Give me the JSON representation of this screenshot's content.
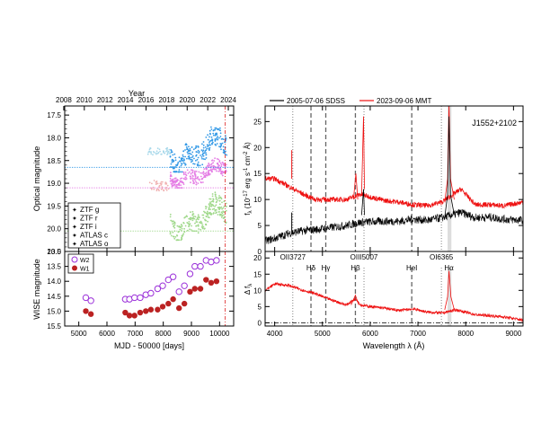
{
  "chart_data": [
    {
      "type": "scatter",
      "panel": "left-top",
      "top_axis_title": "Year",
      "top_ticks": [
        "2008",
        "2010",
        "2012",
        "2014",
        "2016",
        "2018",
        "2020",
        "2022",
        "2024"
      ],
      "ylabel": "Optical magnitude",
      "ylim": [
        20.5,
        17.3
      ],
      "yticks": [
        "17.5",
        "18.0",
        "18.5",
        "19.0",
        "19.5",
        "20.0",
        "20.5"
      ],
      "xlim": [
        4500,
        10500
      ],
      "legend": [
        "ZTF g",
        "ZTF r",
        "ZTF i",
        "ATLAS c",
        "ATLAS o"
      ],
      "series": [
        {
          "name": "ZTF g",
          "color": "#9fd88a",
          "x_range": [
            8250,
            10250
          ],
          "mag_range": [
            19.2,
            20.25
          ]
        },
        {
          "name": "ZTF r",
          "color": "#e57ee5",
          "x_range": [
            8250,
            10250
          ],
          "mag_range": [
            18.45,
            19.1
          ]
        },
        {
          "name": "ZTF i",
          "color": "#3399e6",
          "x_range": [
            8250,
            10250
          ],
          "mag_range": [
            17.7,
            18.75
          ]
        },
        {
          "name": "ATLAS c",
          "color": "#f0b0b0",
          "x_range": [
            7450,
            8250
          ],
          "mag_range": [
            18.9,
            19.2
          ]
        },
        {
          "name": "ATLAS o",
          "color": "#a8d8ea",
          "x_range": [
            7450,
            8250
          ],
          "mag_range": [
            18.2,
            18.4
          ]
        }
      ],
      "reference_lines": [
        {
          "mag": 18.65,
          "color": "#3399e6"
        },
        {
          "mag": 19.1,
          "color": "#e57ee5"
        },
        {
          "mag": 20.05,
          "color": "#9fd88a"
        }
      ],
      "vline_x": 10194
    },
    {
      "type": "scatter",
      "panel": "left-bottom",
      "ylabel": "WISE magnitude",
      "xlabel": "MJD - 50000 [days]",
      "xticks": [
        "5000",
        "6000",
        "7000",
        "8000",
        "9000",
        "10000"
      ],
      "xlim": [
        4500,
        10500
      ],
      "ylim": [
        15.5,
        13.0
      ],
      "yticks": [
        "13.0",
        "13.5",
        "14.0",
        "14.5",
        "15.0",
        "15.5"
      ],
      "legend": [
        "W2",
        "W1"
      ],
      "series": [
        {
          "name": "W2",
          "color": "#9b30d9",
          "x": [
            5250,
            5430,
            6650,
            6800,
            6980,
            7180,
            7380,
            7560,
            7800,
            7980,
            8180,
            8350,
            8560,
            8750,
            8950,
            9120,
            9320,
            9520,
            9700,
            9890
          ],
          "y": [
            14.55,
            14.65,
            14.6,
            14.6,
            14.55,
            14.55,
            14.45,
            14.4,
            14.25,
            14.15,
            13.95,
            13.85,
            14.35,
            14.15,
            13.75,
            13.5,
            13.5,
            13.3,
            13.35,
            13.3
          ]
        },
        {
          "name": "W1",
          "color": "#bb2222",
          "x": [
            5250,
            5430,
            6650,
            6800,
            6980,
            7180,
            7380,
            7560,
            7800,
            7980,
            8180,
            8350,
            8560,
            8750,
            8950,
            9120,
            9320,
            9520,
            9700,
            9890
          ],
          "y": [
            15.0,
            15.1,
            15.05,
            15.15,
            15.15,
            15.05,
            15.0,
            14.95,
            14.95,
            14.85,
            14.75,
            14.6,
            14.9,
            14.75,
            14.35,
            14.25,
            14.25,
            13.95,
            14.05,
            14.0
          ]
        }
      ],
      "vline_x": 10194
    },
    {
      "type": "line",
      "panel": "right-top",
      "ylabel_parts": [
        "f",
        "λ",
        " (10",
        "-17",
        " erg s",
        "-1",
        " cm",
        "-2",
        " Å",
        ")"
      ],
      "xlim": [
        3800,
        9200
      ],
      "ylim": [
        0,
        28
      ],
      "yticks": [
        "0",
        "5",
        "10",
        "15",
        "20",
        "25"
      ],
      "legend": [
        "2005-07-06 SDSS",
        "2023-09-06 MMT"
      ],
      "object_label": "J1552+2102",
      "series": [
        {
          "name": "2005-07-06 SDSS",
          "color": "#000000",
          "x": [
            3800,
            4000,
            4300,
            4600,
            4850,
            5100,
            5500,
            5800,
            6000,
            6300,
            6600,
            6900,
            7200,
            7500,
            7700,
            7900,
            8200,
            8500,
            8800,
            9200
          ],
          "y": [
            2.0,
            2.5,
            3.5,
            4.0,
            4.2,
            4.5,
            5.0,
            5.6,
            5.7,
            5.8,
            5.8,
            6.2,
            6.0,
            6.5,
            25,
            7.5,
            6.5,
            6.6,
            6.2,
            6.0
          ]
        },
        {
          "name": "2023-09-06 MMT",
          "color": "#ee1111",
          "x": [
            3800,
            4000,
            4300,
            4600,
            4850,
            5100,
            5500,
            5800,
            6000,
            6300,
            6600,
            6900,
            7200,
            7500,
            7700,
            7900,
            8200,
            8500,
            8800,
            9200
          ],
          "y": [
            14.0,
            14.0,
            12.5,
            11.0,
            10.0,
            10.0,
            10.0,
            11.0,
            10.5,
            9.8,
            9.5,
            9.0,
            8.8,
            9.5,
            28,
            12,
            9.0,
            9.0,
            8.8,
            9.5
          ]
        }
      ],
      "lines": [
        {
          "label": "OII3727",
          "wave": 4380,
          "style": "dotted"
        },
        {
          "label": "Hδ",
          "wave": 4760,
          "style": "dashed"
        },
        {
          "label": "Hγ",
          "wave": 5070,
          "style": "dashed"
        },
        {
          "label": "Hβ",
          "wave": 5690,
          "style": "dashed"
        },
        {
          "label": "OIII5007",
          "wave": 5870,
          "style": "dotted"
        },
        {
          "label": "HeI",
          "wave": 6870,
          "style": "dashed"
        },
        {
          "label": "OI6365",
          "wave": 7490,
          "style": "dotted"
        },
        {
          "label": "Hα",
          "wave": 7650,
          "style": "dashed"
        }
      ]
    },
    {
      "type": "line",
      "panel": "right-bottom",
      "ylabel": "Δ f",
      "ylabel_sub": "λ",
      "xlabel": "Wavelength λ (Å)",
      "xlim": [
        3800,
        9200
      ],
      "ylim": [
        -1,
        22
      ],
      "xticks": [
        "4000",
        "5000",
        "6000",
        "7000",
        "8000",
        "9000"
      ],
      "yticks": [
        "0",
        "5",
        "10",
        "15",
        "20"
      ],
      "series": [
        {
          "name": "difference",
          "color": "#ee1111",
          "x": [
            3800,
            4000,
            4300,
            4600,
            4850,
            5100,
            5500,
            5700,
            5800,
            6000,
            6300,
            6600,
            6900,
            7200,
            7500,
            7650,
            7800,
            8200,
            8500,
            8800,
            9200
          ],
          "y": [
            10.0,
            12.0,
            11.5,
            10.0,
            9.0,
            7.5,
            5.5,
            7.5,
            5.5,
            5.0,
            4.5,
            3.8,
            4.3,
            3.3,
            3.0,
            14,
            4.0,
            2.5,
            2.2,
            1.8,
            0.8
          ]
        }
      ]
    }
  ]
}
